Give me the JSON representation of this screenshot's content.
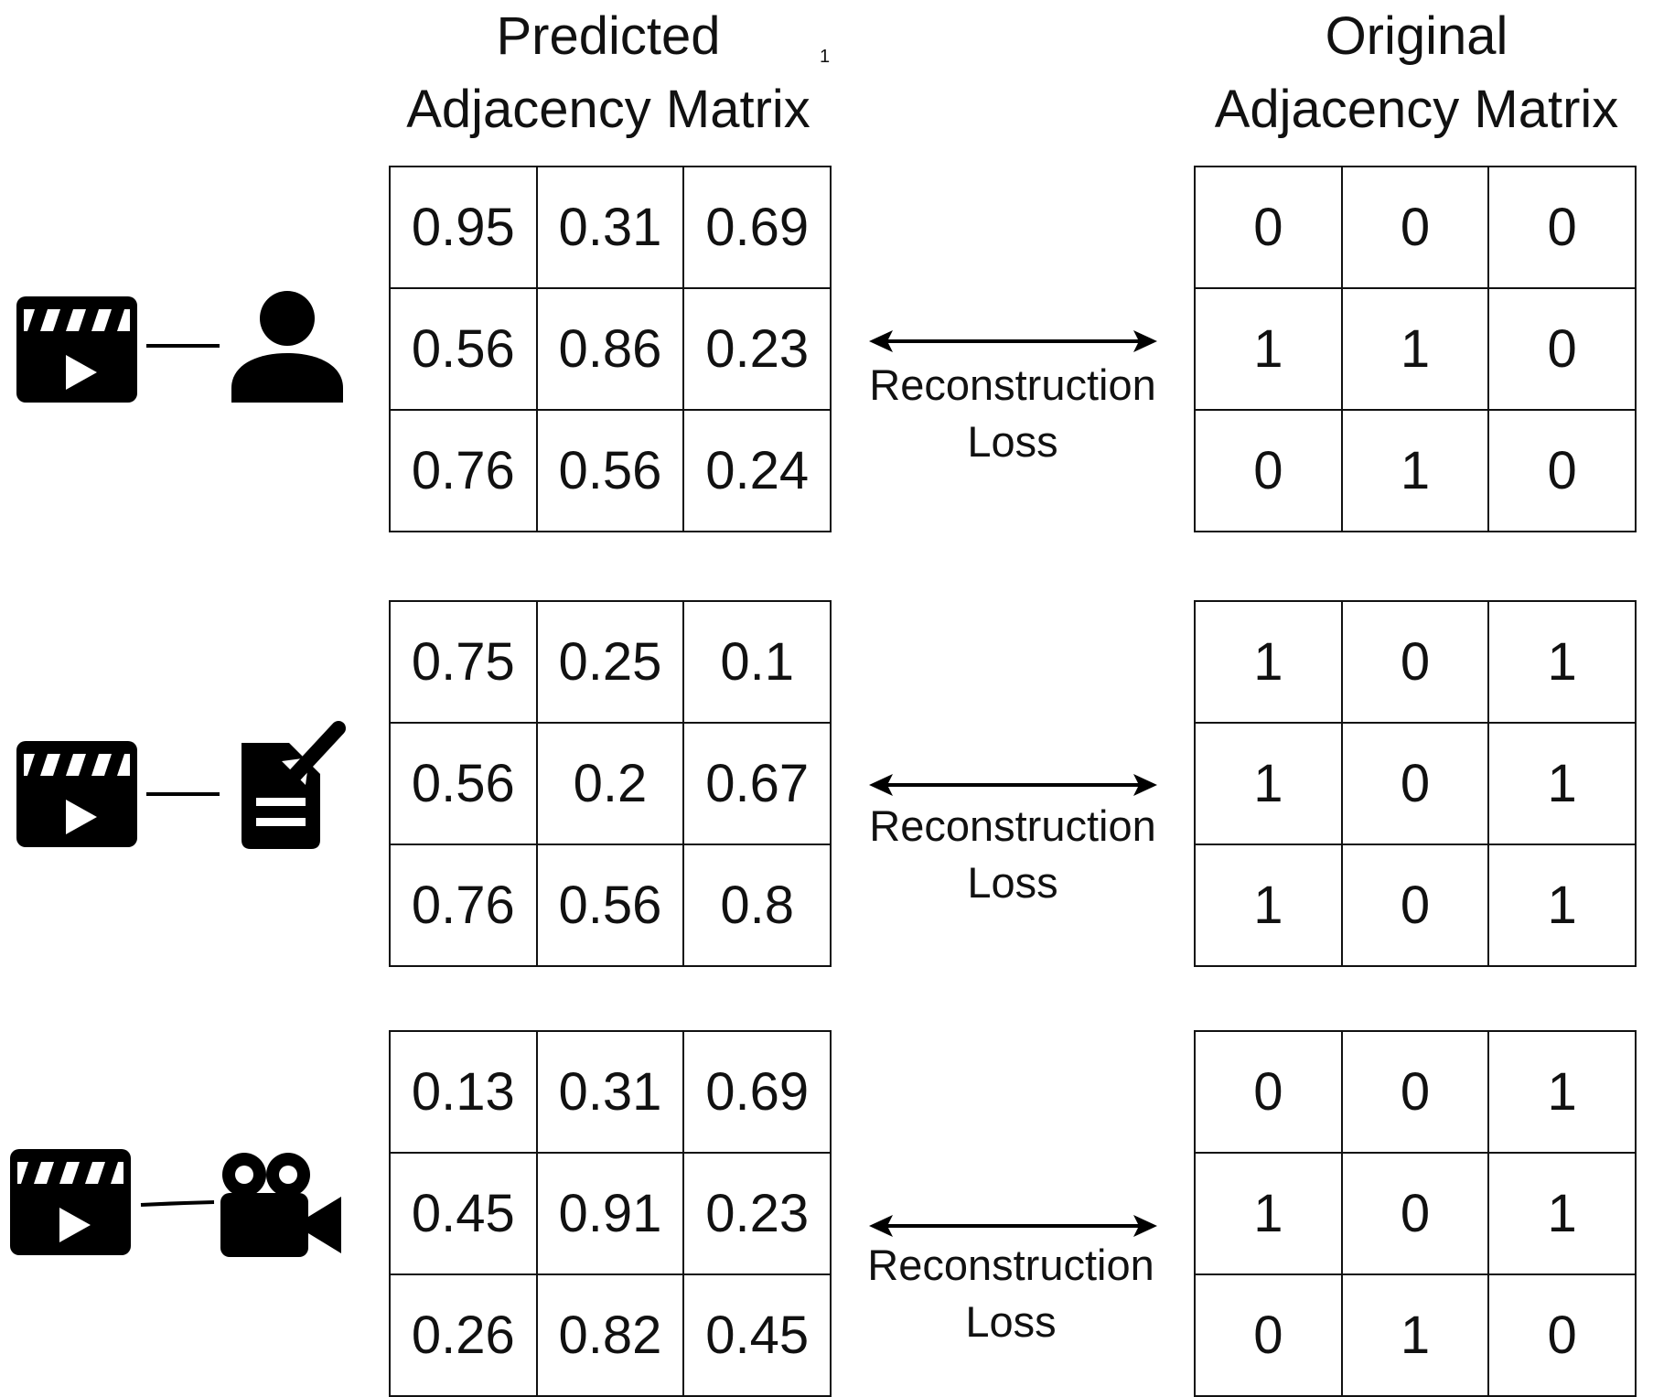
{
  "headers": {
    "predicted": [
      "Predicted",
      "Adjacency Matrix"
    ],
    "original": [
      "Original",
      "Adjacency Matrix"
    ],
    "superscript": "1"
  },
  "rows": [
    {
      "relation": {
        "left_icon": "clapperboard-icon",
        "right_icon": "person-icon"
      },
      "predicted": [
        [
          "0.95",
          "0.31",
          "0.69"
        ],
        [
          "0.56",
          "0.86",
          "0.23"
        ],
        [
          "0.76",
          "0.56",
          "0.24"
        ]
      ],
      "original": [
        [
          "0",
          "0",
          "0"
        ],
        [
          "1",
          "1",
          "0"
        ],
        [
          "0",
          "1",
          "0"
        ]
      ],
      "loss_label": [
        "Reconstruction",
        "Loss"
      ]
    },
    {
      "relation": {
        "left_icon": "clapperboard-icon",
        "right_icon": "edit-document-icon"
      },
      "predicted": [
        [
          "0.75",
          "0.25",
          "0.1"
        ],
        [
          "0.56",
          "0.2",
          "0.67"
        ],
        [
          "0.76",
          "0.56",
          "0.8"
        ]
      ],
      "original": [
        [
          "1",
          "0",
          "1"
        ],
        [
          "1",
          "0",
          "1"
        ],
        [
          "1",
          "0",
          "1"
        ]
      ],
      "loss_label": [
        "Reconstruction",
        "Loss"
      ]
    },
    {
      "relation": {
        "left_icon": "clapperboard-icon",
        "right_icon": "movie-camera-icon"
      },
      "predicted": [
        [
          "0.13",
          "0.31",
          "0.69"
        ],
        [
          "0.45",
          "0.91",
          "0.23"
        ],
        [
          "0.26",
          "0.82",
          "0.45"
        ]
      ],
      "original": [
        [
          "0",
          "0",
          "1"
        ],
        [
          "1",
          "0",
          "1"
        ],
        [
          "0",
          "1",
          "0"
        ]
      ],
      "loss_label": [
        "Reconstruction",
        "Loss"
      ]
    }
  ]
}
